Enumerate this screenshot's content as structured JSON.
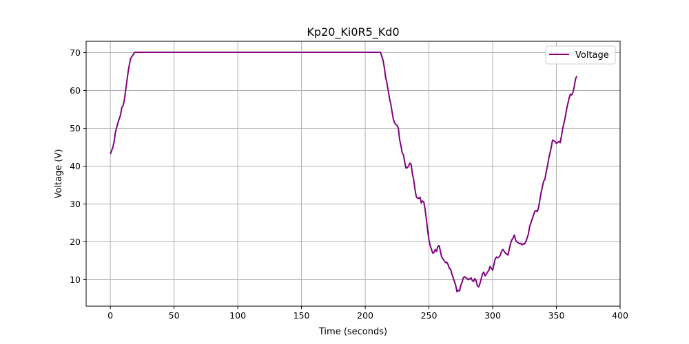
{
  "chart_data": {
    "type": "line",
    "title": "Kp20_Ki0R5_Kd0",
    "xlabel": "Time (seconds)",
    "ylabel": "Voltage (V)",
    "xlim": [
      -19,
      400
    ],
    "ylim": [
      3,
      73
    ],
    "xticks": [
      0,
      50,
      100,
      150,
      200,
      250,
      300,
      350,
      400
    ],
    "yticks": [
      10,
      20,
      30,
      40,
      50,
      60,
      70
    ],
    "grid": true,
    "legend_position": "top-right",
    "series": [
      {
        "name": "Voltage",
        "color": "#800080",
        "points": [
          [
            0,
            43.2
          ],
          [
            2,
            45.0
          ],
          [
            3,
            46.5
          ],
          [
            4,
            49.0
          ],
          [
            6,
            51.5
          ],
          [
            8,
            53.5
          ],
          [
            9,
            55.5
          ],
          [
            10,
            56.0
          ],
          [
            11,
            57.5
          ],
          [
            12,
            60.0
          ],
          [
            13,
            62.5
          ],
          [
            14,
            65.0
          ],
          [
            15,
            67.0
          ],
          [
            16,
            68.5
          ],
          [
            17,
            69.0
          ],
          [
            18,
            69.5
          ],
          [
            19,
            70.1
          ],
          [
            100,
            70.1
          ],
          [
            212,
            70.1
          ],
          [
            213,
            69.0
          ],
          [
            214,
            68.0
          ],
          [
            215,
            66.0
          ],
          [
            216,
            63.5
          ],
          [
            217,
            62.0
          ],
          [
            218,
            60.0
          ],
          [
            219,
            58.0
          ],
          [
            220,
            56.5
          ],
          [
            221,
            54.5
          ],
          [
            222,
            52.5
          ],
          [
            223,
            51.5
          ],
          [
            224,
            51.0
          ],
          [
            225,
            50.8
          ],
          [
            226,
            50.0
          ],
          [
            227,
            47.0
          ],
          [
            228,
            45.5
          ],
          [
            229,
            43.5
          ],
          [
            230,
            43.0
          ],
          [
            231,
            41.0
          ],
          [
            232,
            39.5
          ],
          [
            233,
            39.6
          ],
          [
            234,
            40.0
          ],
          [
            235,
            40.8
          ],
          [
            236,
            40.5
          ],
          [
            237,
            38.0
          ],
          [
            238,
            36.5
          ],
          [
            239,
            34.0
          ],
          [
            240,
            32.0
          ],
          [
            241,
            31.5
          ],
          [
            242,
            31.5
          ],
          [
            243,
            31.8
          ],
          [
            244,
            30.3
          ],
          [
            245,
            30.8
          ],
          [
            246,
            30.5
          ],
          [
            247,
            28.5
          ],
          [
            248,
            26.0
          ],
          [
            249,
            23.0
          ],
          [
            250,
            20.5
          ],
          [
            251,
            19.0
          ],
          [
            252,
            18.0
          ],
          [
            253,
            17.0
          ],
          [
            254,
            17.2
          ],
          [
            255,
            18.0
          ],
          [
            256,
            17.5
          ],
          [
            257,
            18.8
          ],
          [
            258,
            19.0
          ],
          [
            259,
            17.5
          ],
          [
            260,
            16.0
          ],
          [
            261,
            15.5
          ],
          [
            262,
            15.0
          ],
          [
            263,
            14.5
          ],
          [
            264,
            14.6
          ],
          [
            265,
            14.0
          ],
          [
            266,
            13.0
          ],
          [
            267,
            12.8
          ],
          [
            268,
            11.5
          ],
          [
            269,
            10.5
          ],
          [
            270,
            9.5
          ],
          [
            271,
            8.5
          ],
          [
            272,
            6.8
          ],
          [
            273,
            7.2
          ],
          [
            274,
            7.0
          ],
          [
            275,
            8.5
          ],
          [
            276,
            9.3
          ],
          [
            277,
            10.5
          ],
          [
            278,
            10.8
          ],
          [
            279,
            10.5
          ],
          [
            280,
            10.3
          ],
          [
            281,
            10.0
          ],
          [
            282,
            10.2
          ],
          [
            283,
            10.5
          ],
          [
            284,
            9.8
          ],
          [
            285,
            9.5
          ],
          [
            286,
            10.3
          ],
          [
            287,
            9.8
          ],
          [
            288,
            8.4
          ],
          [
            289,
            8.1
          ],
          [
            290,
            9.0
          ],
          [
            291,
            10.2
          ],
          [
            292,
            11.5
          ],
          [
            293,
            12.0
          ],
          [
            294,
            11.0
          ],
          [
            295,
            11.5
          ],
          [
            296,
            12.0
          ],
          [
            297,
            12.5
          ],
          [
            298,
            13.5
          ],
          [
            299,
            13.0
          ],
          [
            300,
            12.5
          ],
          [
            301,
            14.0
          ],
          [
            302,
            15.5
          ],
          [
            303,
            16.0
          ],
          [
            304,
            15.8
          ],
          [
            305,
            16.0
          ],
          [
            306,
            16.5
          ],
          [
            307,
            17.5
          ],
          [
            308,
            18.0
          ],
          [
            309,
            17.5
          ],
          [
            310,
            17.0
          ],
          [
            311,
            16.8
          ],
          [
            312,
            16.5
          ],
          [
            313,
            18.0
          ],
          [
            314,
            19.5
          ],
          [
            315,
            20.5
          ],
          [
            316,
            21.0
          ],
          [
            317,
            21.8
          ],
          [
            318,
            20.5
          ],
          [
            319,
            20.0
          ],
          [
            320,
            19.8
          ],
          [
            321,
            19.5
          ],
          [
            322,
            19.6
          ],
          [
            323,
            19.2
          ],
          [
            324,
            19.5
          ],
          [
            325,
            19.4
          ],
          [
            326,
            20.0
          ],
          [
            327,
            21.0
          ],
          [
            328,
            22.0
          ],
          [
            329,
            24.0
          ],
          [
            330,
            25.0
          ],
          [
            331,
            26.0
          ],
          [
            332,
            27.0
          ],
          [
            333,
            28.0
          ],
          [
            334,
            28.3
          ],
          [
            335,
            28.0
          ],
          [
            336,
            29.0
          ],
          [
            337,
            31.0
          ],
          [
            338,
            33.0
          ],
          [
            339,
            34.5
          ],
          [
            340,
            36.0
          ],
          [
            341,
            36.5
          ],
          [
            342,
            38.5
          ],
          [
            343,
            40.0
          ],
          [
            344,
            42.0
          ],
          [
            345,
            43.5
          ],
          [
            346,
            45.0
          ],
          [
            347,
            46.9
          ],
          [
            348,
            46.7
          ],
          [
            349,
            46.5
          ],
          [
            350,
            46.0
          ],
          [
            351,
            46.3
          ],
          [
            352,
            46.5
          ],
          [
            353,
            46.2
          ],
          [
            354,
            48.0
          ],
          [
            355,
            50.0
          ],
          [
            356,
            51.5
          ],
          [
            357,
            53.0
          ],
          [
            358,
            55.0
          ],
          [
            359,
            56.5
          ],
          [
            360,
            58.0
          ],
          [
            361,
            59.0
          ],
          [
            362,
            58.8
          ],
          [
            363,
            59.5
          ],
          [
            364,
            61.0
          ],
          [
            365,
            63.0
          ],
          [
            366,
            63.8
          ]
        ]
      }
    ]
  }
}
